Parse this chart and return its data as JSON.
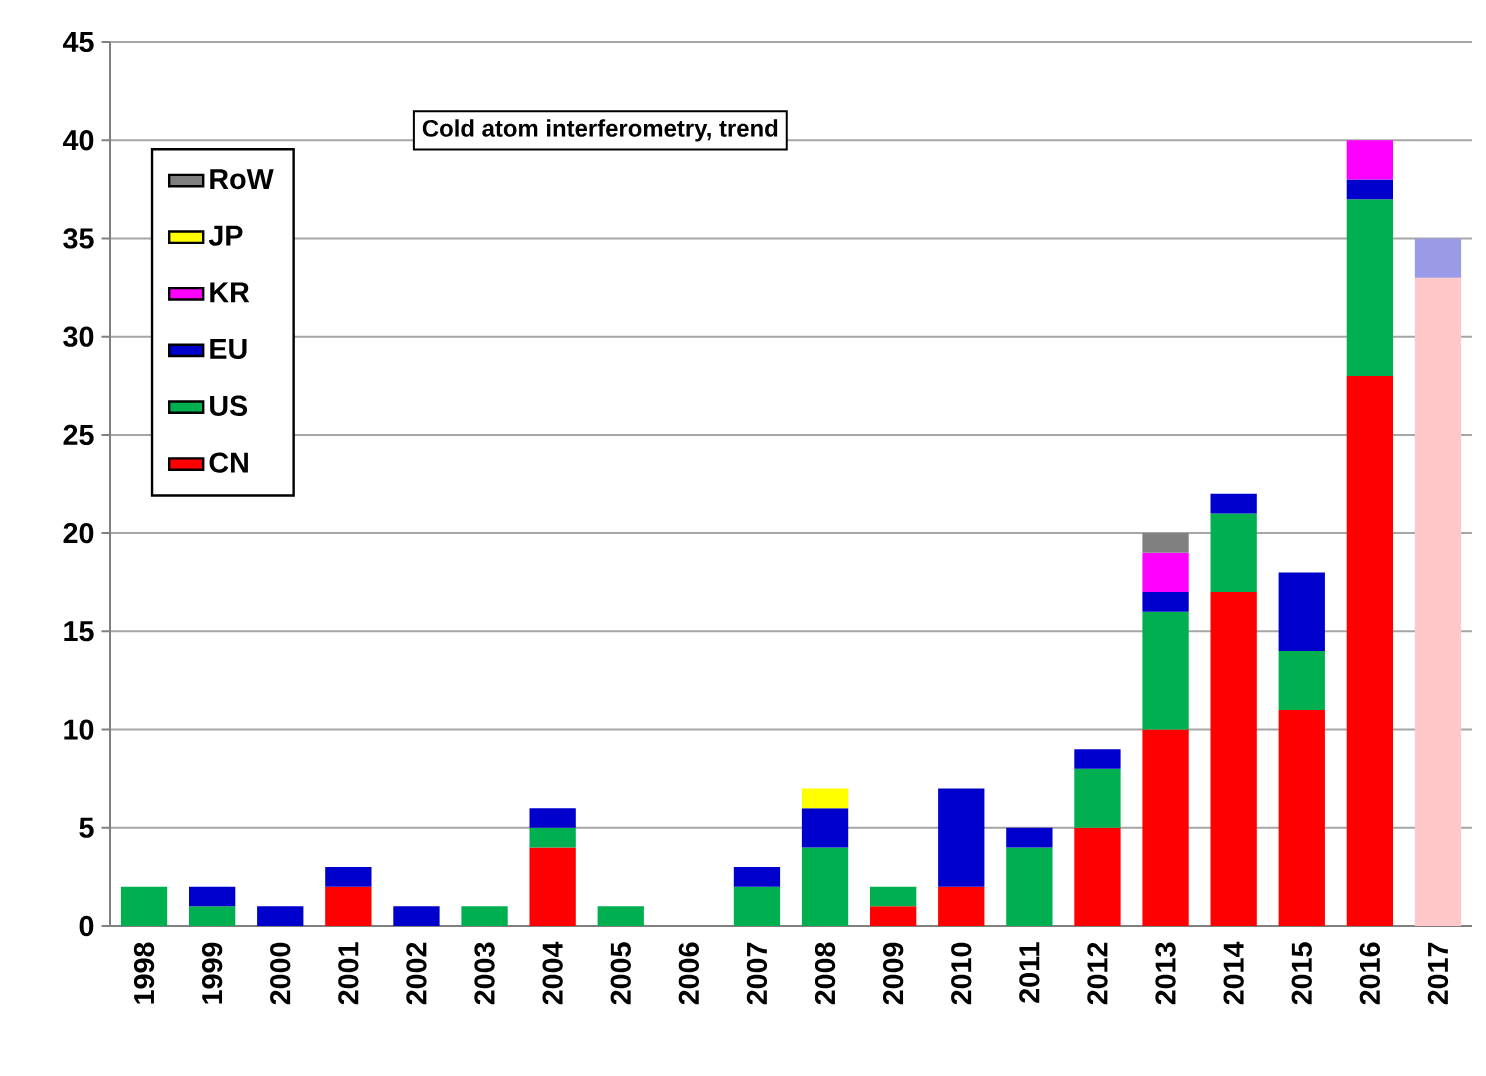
{
  "chart_data": {
    "type": "bar",
    "title": "Cold atom interferometry, trend",
    "stacked": true,
    "categories": [
      "1998",
      "1999",
      "2000",
      "2001",
      "2002",
      "2003",
      "2004",
      "2005",
      "2006",
      "2007",
      "2008",
      "2009",
      "2010",
      "2011",
      "2012",
      "2013",
      "2014",
      "2015",
      "2016",
      "2017"
    ],
    "series": [
      {
        "name": "CN",
        "color": "#ff0000",
        "values": [
          0,
          0,
          0,
          2,
          0,
          0,
          4,
          0,
          0,
          0,
          0,
          1,
          2,
          0,
          5,
          10,
          17,
          11,
          28,
          33
        ],
        "colors": [
          "#ff0000",
          "#ff0000",
          "#ff0000",
          "#ff0000",
          "#ff0000",
          "#ff0000",
          "#ff0000",
          "#ff0000",
          "#ff0000",
          "#ff0000",
          "#ff0000",
          "#ff0000",
          "#ff0000",
          "#ff0000",
          "#ff0000",
          "#ff0000",
          "#ff0000",
          "#ff0000",
          "#ff0000",
          "#ffc8c8"
        ]
      },
      {
        "name": "US",
        "color": "#00b050",
        "values": [
          2,
          1,
          0,
          0,
          0,
          1,
          1,
          1,
          0,
          2,
          4,
          1,
          0,
          4,
          3,
          6,
          4,
          3,
          9,
          0
        ]
      },
      {
        "name": "EU",
        "color": "#0000cc",
        "values": [
          0,
          1,
          1,
          1,
          1,
          0,
          1,
          0,
          0,
          1,
          2,
          0,
          5,
          1,
          1,
          1,
          1,
          4,
          1,
          2
        ],
        "colors": [
          "#0000cc",
          "#0000cc",
          "#0000cc",
          "#0000cc",
          "#0000cc",
          "#0000cc",
          "#0000cc",
          "#0000cc",
          "#0000cc",
          "#0000cc",
          "#0000cc",
          "#0000cc",
          "#0000cc",
          "#0000cc",
          "#0000cc",
          "#0000cc",
          "#0000cc",
          "#0000cc",
          "#0000cc",
          "#9a9ae6"
        ]
      },
      {
        "name": "KR",
        "color": "#ff00ff",
        "values": [
          0,
          0,
          0,
          0,
          0,
          0,
          0,
          0,
          0,
          0,
          0,
          0,
          0,
          0,
          0,
          2,
          0,
          0,
          2,
          0
        ]
      },
      {
        "name": "JP",
        "color": "#ffff00",
        "values": [
          0,
          0,
          0,
          0,
          0,
          0,
          0,
          0,
          0,
          0,
          1,
          0,
          0,
          0,
          0,
          0,
          0,
          0,
          0,
          0
        ]
      },
      {
        "name": "RoW",
        "color": "#808080",
        "values": [
          0,
          0,
          0,
          0,
          0,
          0,
          0,
          0,
          0,
          0,
          0,
          0,
          0,
          0,
          0,
          1,
          0,
          0,
          0,
          0
        ]
      }
    ],
    "ylim": [
      0,
      45
    ],
    "yticks": [
      0,
      5,
      10,
      15,
      20,
      25,
      30,
      35,
      40,
      45
    ],
    "grid": "y",
    "legend": "top left"
  }
}
